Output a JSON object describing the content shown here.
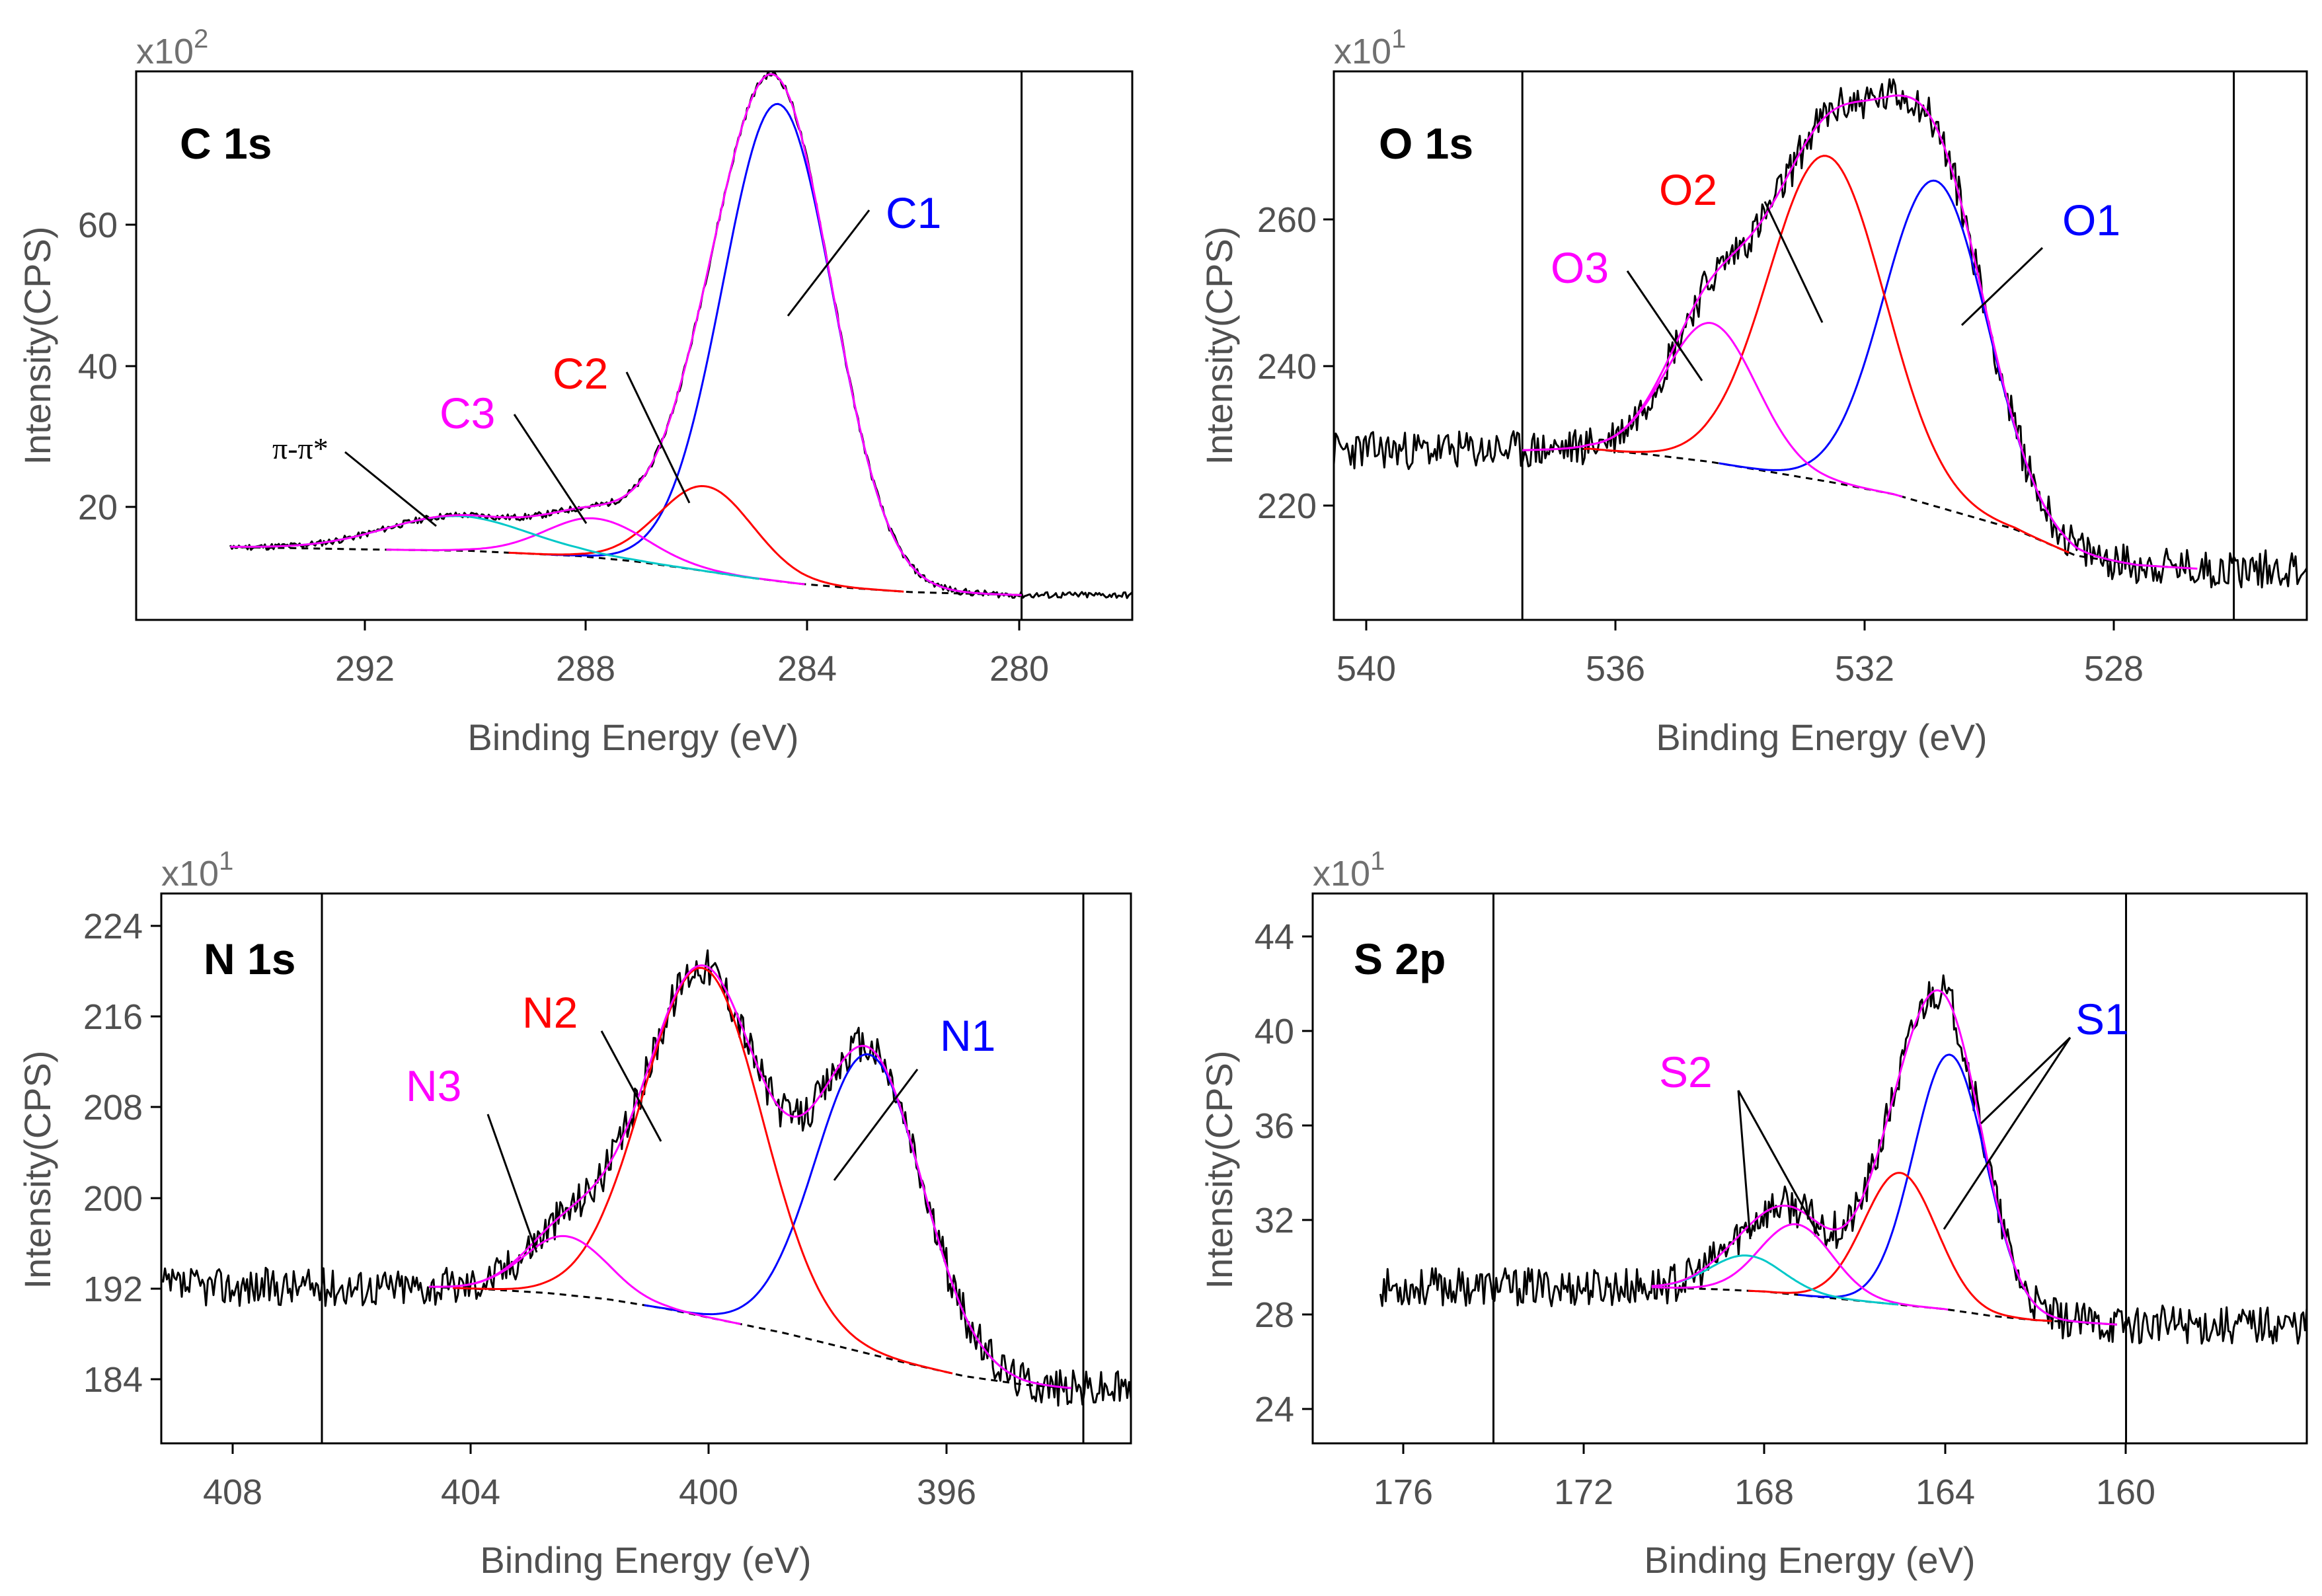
{
  "colors": {
    "black": "#000000",
    "blue": "#0000ff",
    "red": "#ff0000",
    "magenta": "#ff00ff",
    "cyan": "#00c8c8",
    "axis_text": "#505050"
  },
  "chart_data": [
    {
      "type": "line",
      "title": "C 1s",
      "xlabel": "Binding Energy (eV)",
      "ylabel": "Intensity(CPS)",
      "multiplier": {
        "base": "x10",
        "exp": "2"
      },
      "xlim": [
        296,
        278
      ],
      "ylim": [
        5,
        78
      ],
      "xticks": [
        292,
        288,
        284,
        280
      ],
      "yticks": [
        20,
        40,
        60
      ],
      "xtick_labels": [
        "292",
        "288",
        "284",
        "280"
      ],
      "ytick_labels": [
        "20",
        "40",
        "60"
      ],
      "vlines": [
        280.0
      ],
      "background": [
        [
          294.3,
          14.7
        ],
        [
          292,
          14.4
        ],
        [
          290,
          14.2
        ],
        [
          288,
          13.5
        ],
        [
          287,
          12.8
        ],
        [
          286,
          11.8
        ],
        [
          285,
          10.7
        ],
        [
          284,
          9.8
        ],
        [
          283,
          9.2
        ],
        [
          282,
          8.7
        ],
        [
          281,
          8.5
        ],
        [
          280,
          8.3
        ]
      ],
      "components": [
        {
          "name": "C1",
          "center": 284.4,
          "height": 63.5,
          "sigma": 1.0,
          "color": "blue"
        },
        {
          "name": "C2",
          "center": 285.7,
          "height": 11.3,
          "sigma": 0.85,
          "color": "red"
        },
        {
          "name": "C3",
          "center": 287.7,
          "height": 5.2,
          "sigma": 0.9,
          "color": "magenta"
        },
        {
          "name": "π-π*",
          "center": 290.2,
          "height": 4.6,
          "sigma": 1.3,
          "color": "cyan"
        }
      ],
      "annotations": [
        {
          "text": "C1",
          "color": "blue"
        },
        {
          "text": "C2",
          "color": "red"
        },
        {
          "text": "C3",
          "color": "magenta"
        },
        {
          "text": "π-π*",
          "color": "black"
        }
      ]
    },
    {
      "type": "line",
      "title": "O 1s",
      "xlabel": "Binding Energy (eV)",
      "ylabel": "Intensity(CPS)",
      "multiplier": {
        "base": "x10",
        "exp": "1"
      },
      "xlim": [
        540.2,
        524.2
      ],
      "ylim": [
        205,
        280
      ],
      "xticks": [
        540,
        536,
        532,
        528
      ],
      "yticks": [
        220,
        240,
        260
      ],
      "xtick_labels": [
        "540",
        "536",
        "532",
        "528"
      ],
      "ytick_labels": [
        "220",
        "240",
        "260"
      ],
      "vlines": [
        537.1,
        525.4
      ],
      "background": [
        [
          537.1,
          228.2
        ],
        [
          536,
          228.4
        ],
        [
          535,
          227.6
        ],
        [
          534,
          226.6
        ],
        [
          533,
          225.2
        ],
        [
          532,
          223.8
        ],
        [
          531,
          222.2
        ],
        [
          530,
          219.8
        ],
        [
          529,
          217.4
        ],
        [
          528,
          213.8
        ],
        [
          527,
          212.5
        ],
        [
          526,
          212.0
        ]
      ],
      "components": [
        {
          "name": "O1",
          "center": 530.3,
          "height": 44.5,
          "sigma": 0.85,
          "color": "blue"
        },
        {
          "name": "O2",
          "center": 532.1,
          "height": 44.5,
          "sigma": 0.95,
          "color": "red"
        },
        {
          "name": "O3",
          "center": 534.0,
          "height": 19.0,
          "sigma": 0.75,
          "color": "magenta"
        }
      ],
      "annotations": [
        {
          "text": "O1",
          "color": "blue"
        },
        {
          "text": "O2",
          "color": "red"
        },
        {
          "text": "O3",
          "color": "magenta"
        }
      ]
    },
    {
      "type": "line",
      "title": "N 1s",
      "xlabel": "Binding Energy (eV)",
      "ylabel": "Intensity(CPS)",
      "multiplier": {
        "base": "x10",
        "exp": "1"
      },
      "xlim": [
        409.5,
        393.2
      ],
      "ylim": [
        181,
        226
      ],
      "xticks": [
        408,
        404,
        400,
        396
      ],
      "yticks": [
        184,
        192,
        200,
        208,
        216,
        224
      ],
      "xtick_labels": [
        "408",
        "404",
        "400",
        "396"
      ],
      "ytick_labels": [
        "184",
        "192",
        "200",
        "208",
        "216",
        "224"
      ],
      "vlines": [
        406.8,
        394.0
      ],
      "background": [
        [
          405.0,
          193.8
        ],
        [
          404,
          193.6
        ],
        [
          403,
          193.3
        ],
        [
          402,
          192.8
        ],
        [
          401,
          192.0
        ],
        [
          400,
          191.0
        ],
        [
          399,
          190.0
        ],
        [
          398,
          188.8
        ],
        [
          397,
          187.6
        ],
        [
          396,
          186.5
        ],
        [
          395,
          185.8
        ],
        [
          394.2,
          185.5
        ]
      ],
      "components": [
        {
          "name": "N1",
          "center": 397.6,
          "height": 24.5,
          "sigma": 0.9,
          "color": "blue"
        },
        {
          "name": "N2",
          "center": 400.4,
          "height": 28.5,
          "sigma": 1.0,
          "color": "red"
        },
        {
          "name": "N3",
          "center": 402.7,
          "height": 4.8,
          "sigma": 0.7,
          "color": "magenta"
        }
      ],
      "annotations": [
        {
          "text": "N1",
          "color": "blue"
        },
        {
          "text": "N2",
          "color": "red"
        },
        {
          "text": "N3",
          "color": "magenta"
        }
      ]
    },
    {
      "type": "line",
      "title": "S 2p",
      "xlabel": "Binding Energy (eV)",
      "ylabel": "Intensity(CPS)",
      "multiplier": {
        "base": "x10",
        "exp": "1"
      },
      "xlim": [
        178,
        156
      ],
      "ylim": [
        22.5,
        47.5
      ],
      "xticks": [
        176,
        172,
        168,
        164,
        160
      ],
      "yticks": [
        24,
        28,
        32,
        36,
        40,
        44
      ],
      "xtick_labels": [
        "176",
        "172",
        "168",
        "164",
        "160"
      ],
      "ytick_labels": [
        "24",
        "28",
        "32",
        "36",
        "40",
        "44"
      ],
      "vlines": [
        174.0,
        160.0
      ],
      "background": [
        [
          170.5,
          29.6
        ],
        [
          169,
          29.5
        ],
        [
          168,
          29.4
        ],
        [
          167,
          29.2
        ],
        [
          166,
          29.0
        ],
        [
          165,
          28.8
        ],
        [
          164,
          28.6
        ],
        [
          163,
          28.3
        ],
        [
          162,
          28.1
        ],
        [
          161,
          28.0
        ],
        [
          160.2,
          27.9
        ]
      ],
      "components": [
        {
          "name": "S1",
          "center": 163.9,
          "height": 11.6,
          "sigma": 0.8,
          "color": "blue"
        },
        {
          "name": "S1",
          "center": 165.0,
          "height": 6.0,
          "sigma": 0.8,
          "color": "red"
        },
        {
          "name": "S2",
          "center": 167.3,
          "height": 3.2,
          "sigma": 0.8,
          "color": "magenta"
        },
        {
          "name": "S2",
          "center": 168.4,
          "height": 1.6,
          "sigma": 0.8,
          "color": "cyan"
        }
      ],
      "annotations": [
        {
          "text": "S1",
          "color": "blue"
        },
        {
          "text": "S2",
          "color": "magenta"
        }
      ]
    }
  ]
}
